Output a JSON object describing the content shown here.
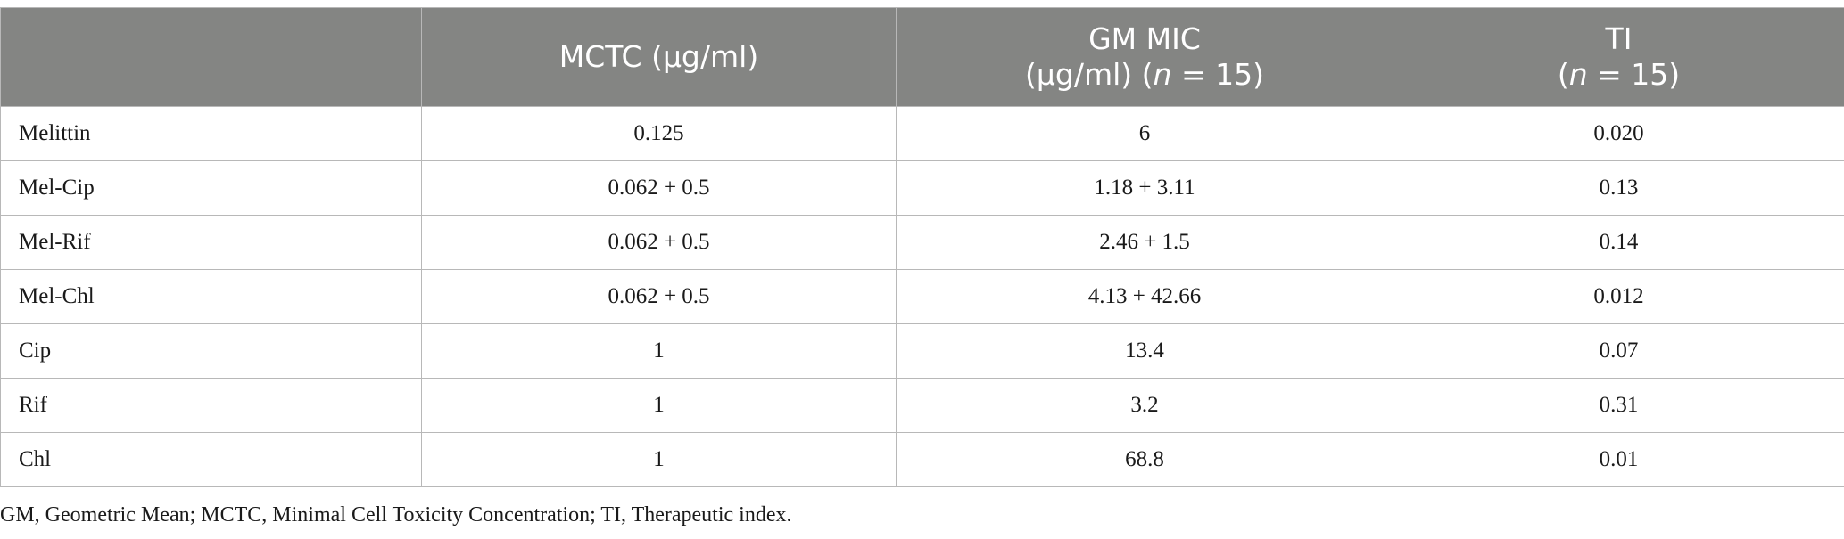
{
  "table": {
    "headers": {
      "col1": "",
      "col2": "MCTC (μg/ml)",
      "col3_line1": "GM MIC",
      "col3_line2_pre": "(μg/ml) (",
      "col3_line2_n": "n",
      "col3_line2_post": " = 15)",
      "col4_line1": "TI",
      "col4_line2_pre": "(",
      "col4_line2_n": "n",
      "col4_line2_post": " = 15)"
    },
    "rows": [
      {
        "name": "Melittin",
        "mctc": "0.125",
        "gm_mic": "6",
        "ti": "0.020"
      },
      {
        "name": "Mel-Cip",
        "mctc": "0.062 + 0.5",
        "gm_mic": "1.18 + 3.11",
        "ti": "0.13"
      },
      {
        "name": "Mel-Rif",
        "mctc": "0.062 + 0.5",
        "gm_mic": "2.46 + 1.5",
        "ti": "0.14"
      },
      {
        "name": "Mel-Chl",
        "mctc": "0.062 + 0.5",
        "gm_mic": "4.13 + 42.66",
        "ti": "0.012"
      },
      {
        "name": "Cip",
        "mctc": "1",
        "gm_mic": "13.4",
        "ti": "0.07"
      },
      {
        "name": "Rif",
        "mctc": "1",
        "gm_mic": "3.2",
        "ti": "0.31"
      },
      {
        "name": "Chl",
        "mctc": "1",
        "gm_mic": "68.8",
        "ti": "0.01"
      }
    ]
  },
  "footnote": "GM, Geometric Mean; MCTC, Minimal Cell Toxicity Concentration; TI, Therapeutic index.",
  "colors": {
    "header_bg": "#848583",
    "header_text": "#ffffff",
    "border": "#b8b8b8"
  }
}
